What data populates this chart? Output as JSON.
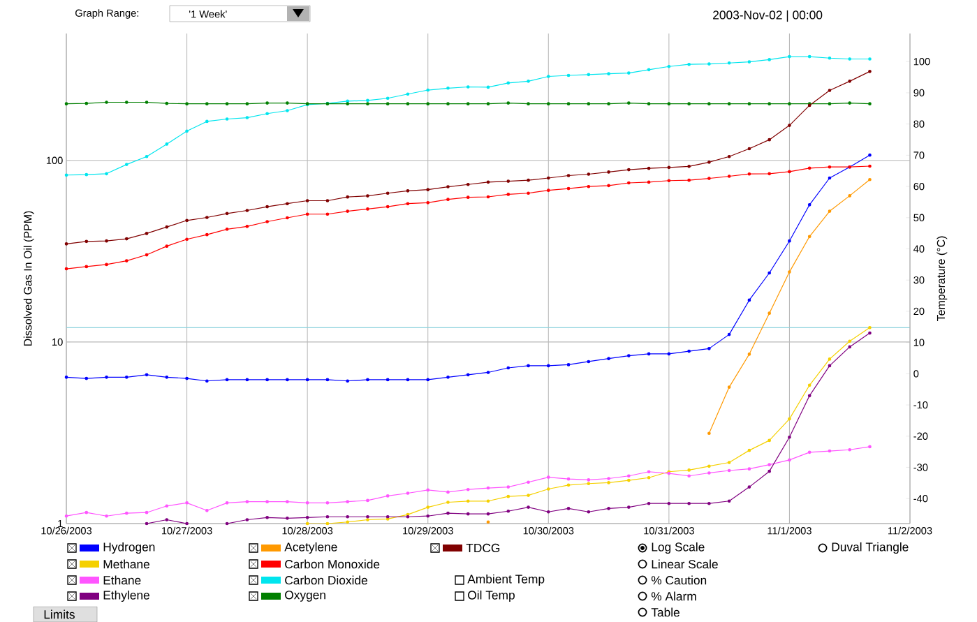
{
  "chart_data": {
    "type": "line",
    "ylabel": "Dissolved Gas In Oil (PPM)",
    "y2label": "Temperature (°C)",
    "x": [
      "2003-10-26T00:00",
      "2003-10-26T04:00",
      "2003-10-26T08:00",
      "2003-10-26T12:00",
      "2003-10-26T16:00",
      "2003-10-26T20:00",
      "2003-10-27T00:00",
      "2003-10-27T04:00",
      "2003-10-27T08:00",
      "2003-10-27T12:00",
      "2003-10-27T16:00",
      "2003-10-27T20:00",
      "2003-10-28T00:00",
      "2003-10-28T04:00",
      "2003-10-28T08:00",
      "2003-10-28T12:00",
      "2003-10-28T16:00",
      "2003-10-28T20:00",
      "2003-10-29T00:00",
      "2003-10-29T04:00",
      "2003-10-29T08:00",
      "2003-10-29T12:00",
      "2003-10-29T16:00",
      "2003-10-29T20:00",
      "2003-10-30T00:00",
      "2003-10-30T04:00",
      "2003-10-30T08:00",
      "2003-10-30T12:00",
      "2003-10-30T16:00",
      "2003-10-30T20:00",
      "2003-10-31T00:00",
      "2003-10-31T04:00",
      "2003-10-31T08:00",
      "2003-10-31T12:00",
      "2003-10-31T16:00",
      "2003-10-31T20:00",
      "2003-11-01T00:00",
      "2003-11-01T04:00",
      "2003-11-01T08:00",
      "2003-11-01T12:00",
      "2003-11-01T16:00"
    ],
    "series": [
      {
        "name": "Hydrogen",
        "color": "#0000ff",
        "values": [
          6.4,
          6.3,
          6.4,
          6.4,
          6.6,
          6.4,
          6.3,
          6.1,
          6.2,
          6.2,
          6.2,
          6.2,
          6.2,
          6.2,
          6.1,
          6.2,
          6.2,
          6.2,
          6.2,
          6.4,
          6.6,
          6.8,
          7.2,
          7.4,
          7.4,
          7.5,
          7.8,
          8.1,
          8.4,
          8.6,
          8.6,
          8.9,
          9.2,
          11,
          17,
          24,
          36,
          57,
          80,
          92,
          107
        ]
      },
      {
        "name": "Methane",
        "color": "#f5d000",
        "values": [
          null,
          null,
          null,
          null,
          null,
          null,
          null,
          null,
          null,
          null,
          null,
          null,
          1.0,
          1.0,
          1.02,
          1.05,
          1.06,
          1.12,
          1.23,
          1.31,
          1.33,
          1.33,
          1.41,
          1.43,
          1.55,
          1.63,
          1.66,
          1.68,
          1.73,
          1.79,
          1.93,
          1.97,
          2.07,
          2.17,
          2.53,
          2.87,
          3.77,
          5.78,
          8.05,
          10.1,
          12
        ]
      },
      {
        "name": "Ethane",
        "color": "#ff55ff",
        "values": [
          1.1,
          1.15,
          1.1,
          1.14,
          1.15,
          1.25,
          1.3,
          1.18,
          1.3,
          1.32,
          1.32,
          1.32,
          1.3,
          1.3,
          1.32,
          1.34,
          1.42,
          1.47,
          1.53,
          1.49,
          1.54,
          1.57,
          1.59,
          1.69,
          1.8,
          1.76,
          1.74,
          1.77,
          1.83,
          1.93,
          1.89,
          1.83,
          1.9,
          1.96,
          2.0,
          2.11,
          2.24,
          2.47,
          2.51,
          2.55,
          2.65
        ]
      },
      {
        "name": "Ethylene",
        "color": "#800080",
        "values": [
          null,
          null,
          null,
          null,
          1.0,
          1.05,
          1.0,
          null,
          1.0,
          1.05,
          1.08,
          1.07,
          1.08,
          1.09,
          1.09,
          1.09,
          1.09,
          1.09,
          1.1,
          1.14,
          1.13,
          1.13,
          1.17,
          1.23,
          1.16,
          1.21,
          1.16,
          1.21,
          1.23,
          1.29,
          1.29,
          1.29,
          1.29,
          1.33,
          1.59,
          1.94,
          2.99,
          5.06,
          7.4,
          9.4,
          11.2
        ]
      },
      {
        "name": "Acetylene",
        "color": "#ff9900",
        "values": [
          null,
          null,
          null,
          null,
          null,
          null,
          null,
          null,
          null,
          null,
          null,
          null,
          null,
          null,
          null,
          null,
          null,
          null,
          null,
          null,
          null,
          1.02,
          null,
          null,
          null,
          null,
          null,
          null,
          null,
          null,
          null,
          null,
          3.14,
          5.64,
          8.57,
          14.4,
          24.3,
          38.1,
          52.5,
          63.9,
          78.4
        ]
      },
      {
        "name": "Carbon Monoxide",
        "color": "#ff0000",
        "values": [
          25.3,
          26,
          26.7,
          28,
          30.2,
          33.7,
          36.8,
          39,
          41.8,
          43.3,
          46,
          48.3,
          50.6,
          50.6,
          52.5,
          54,
          55.6,
          57.8,
          58.5,
          61,
          62.6,
          63,
          65,
          66,
          68.4,
          70,
          71.8,
          72.7,
          75.2,
          75.9,
          77.4,
          77.8,
          79.6,
          81.8,
          84.2,
          84.5,
          86.7,
          90.7,
          92,
          92,
          93
        ]
      },
      {
        "name": "Carbon Dioxide",
        "color": "#00e5ee",
        "values": [
          83,
          83.5,
          84.5,
          95,
          105,
          123,
          145,
          164,
          169,
          172,
          181,
          188,
          203,
          206,
          212,
          214,
          220,
          232,
          244,
          250,
          254,
          253,
          267,
          273,
          290,
          294,
          297,
          300,
          303,
          316,
          329,
          338,
          340,
          344,
          349,
          359,
          373,
          373,
          366,
          362,
          362
        ]
      },
      {
        "name": "Oxygen",
        "color": "#007f00",
        "values": [
          205,
          206,
          209,
          209,
          209,
          206,
          205,
          205,
          205,
          205,
          207,
          207,
          205,
          205,
          205,
          205,
          205,
          205,
          205,
          205,
          205,
          205,
          207,
          205,
          205,
          205,
          205,
          205,
          207,
          205,
          205,
          205,
          205,
          205,
          205,
          205,
          205,
          205,
          205,
          207,
          205
        ]
      },
      {
        "name": "TDCG",
        "color": "#800000",
        "values": [
          34.7,
          35.8,
          36,
          37,
          39.6,
          43,
          46.7,
          48.5,
          51,
          53,
          55.6,
          57.8,
          60,
          60,
          62.9,
          63.8,
          66,
          68,
          69,
          71.6,
          73.7,
          76,
          76.8,
          77.8,
          80,
          82.5,
          84,
          86.3,
          88.9,
          90.4,
          91.5,
          92.7,
          97.8,
          105,
          116,
          130,
          156,
          201,
          243,
          273,
          309
        ]
      }
    ],
    "xlim": [
      "2003-10-26",
      "2003-11-02"
    ],
    "xticks": [
      {
        "value": "2003-10-26",
        "label": "10/26/2003"
      },
      {
        "value": "2003-10-27",
        "label": "10/27/2003"
      },
      {
        "value": "2003-10-28",
        "label": "10/28/2003"
      },
      {
        "value": "2003-10-29",
        "label": "10/29/2003"
      },
      {
        "value": "2003-10-30",
        "label": "10/30/2003"
      },
      {
        "value": "2003-10-31",
        "label": "10/31/2003"
      },
      {
        "value": "2003-11-01",
        "label": "11/1/2003"
      },
      {
        "value": "2003-11-02",
        "label": "11/2/2003"
      }
    ],
    "ylim": [
      1,
      500
    ],
    "yticks": [
      1,
      10,
      100
    ],
    "log": "y",
    "y2lim": [
      -48,
      109
    ],
    "y2ticks": [
      -40,
      -30,
      -20,
      -10,
      0,
      10,
      20,
      30,
      40,
      50,
      60,
      70,
      80,
      90,
      100
    ],
    "ref_lines": [
      {
        "axis": "y",
        "value": 12,
        "color": "#8fd3de"
      }
    ],
    "grid": true,
    "legend": "bottom",
    "marker": "circle",
    "line_style": "solid",
    "annotations": [
      "Graph Range:",
      "'1 Week'",
      "2003-Nov-02 | 00:00",
      "Ambient Temp",
      "Oil Temp",
      "Log Scale",
      "Linear Scale",
      "% Caution",
      "% Alarm",
      "Table",
      "Duval Triangle",
      "Limits"
    ]
  }
}
